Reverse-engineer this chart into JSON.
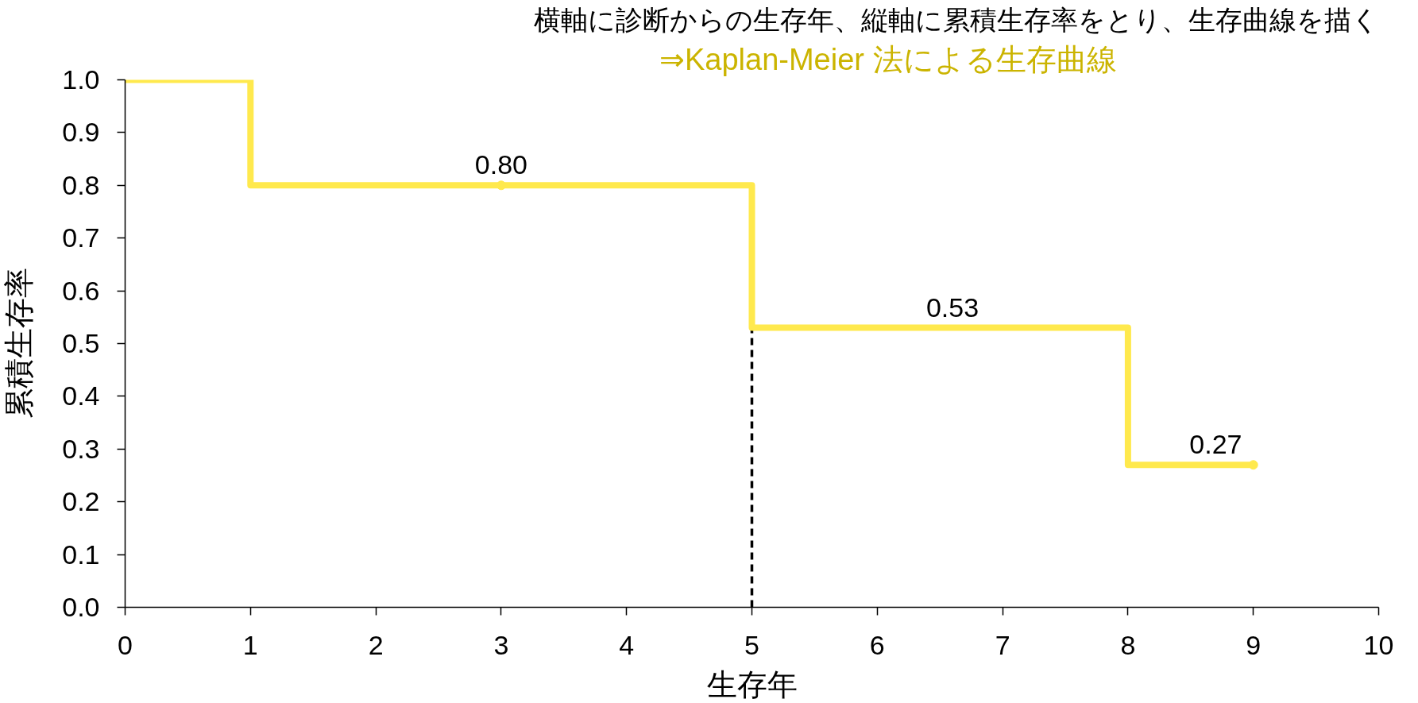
{
  "chart_data": {
    "type": "step",
    "title": "横軸に診断からの生存年、縦軸に累積生存率をとり、生存曲線を描く",
    "subtitle": "⇒Kaplan-Meier 法による生存曲線",
    "xlabel": "生存年",
    "ylabel": "累積生存率",
    "xlim": [
      0,
      10
    ],
    "xticks": [
      0,
      1,
      2,
      3,
      4,
      5,
      6,
      7,
      8,
      9,
      10
    ],
    "ylim": [
      0,
      1
    ],
    "yticks": [
      {
        "value": 0,
        "label": "0.0"
      },
      0.1,
      0.2,
      0.3,
      0.4,
      0.5,
      0.6,
      0.7,
      0.8,
      0.9,
      {
        "value": 1,
        "label": "1.0"
      }
    ],
    "grid": false,
    "series": [
      {
        "type": "line",
        "x": [
          5,
          5
        ],
        "values": [
          0,
          0.53
        ],
        "color": "#000000",
        "line_style": "dashed"
      },
      {
        "x": [
          0,
          1,
          5,
          8,
          9
        ],
        "values": [
          1.0,
          0.8,
          0.53,
          0.27,
          0.27
        ],
        "color": "#ffe94d"
      },
      {
        "type": "scatter",
        "x": [
          3,
          9
        ],
        "values": [
          0.8,
          0.27
        ],
        "color": "#ffe94d",
        "marker": "circle"
      }
    ],
    "annotations": [
      {
        "text": "0.80",
        "x": 3,
        "y": 0.8
      },
      {
        "text": "0.53",
        "x": 6.6,
        "y": 0.53
      },
      {
        "text": "0.27",
        "x": 8.7,
        "y": 0.27
      }
    ]
  }
}
